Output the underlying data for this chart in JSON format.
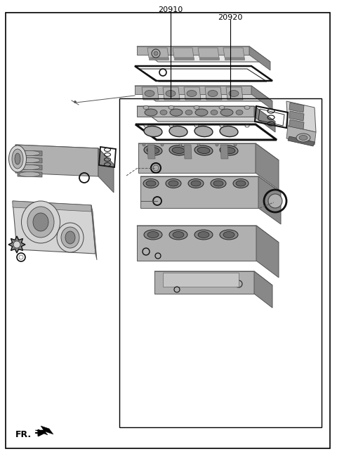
{
  "label_20910": "20910",
  "label_20920": "20920",
  "label_fr": "FR.",
  "bg_color": "#ffffff",
  "border_color": "#000000",
  "text_color": "#000000",
  "figsize": [
    4.8,
    6.56
  ],
  "dpi": 100,
  "G_light": "#d4d4d4",
  "G_mid": "#b0b0b0",
  "G_dark": "#888888",
  "G_vdark": "#666666",
  "G_bright": "#e8e8e8"
}
